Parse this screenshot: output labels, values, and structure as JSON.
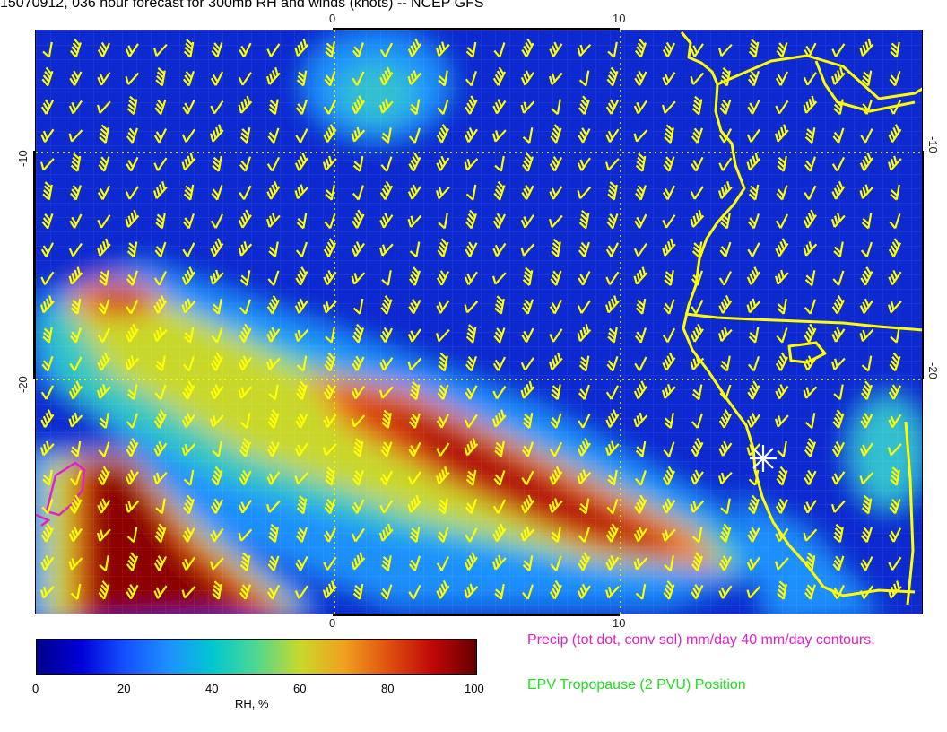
{
  "title": "15070912, 036 hour forecast for 300mb RH and winds (knots) -- NCEP GFS",
  "map": {
    "top_axis_labels": [
      "0",
      "10"
    ],
    "bottom_axis_labels": [
      "0",
      "10"
    ],
    "left_axis_labels": [
      "-10",
      "-20"
    ],
    "right_axis_labels": [
      "-10",
      "-20"
    ],
    "colors": {
      "background_rh_low": "#0a2ad0",
      "coastline": "#ffff00",
      "wind_barb": "#ffff00",
      "gridline": "#ffff00",
      "precip_contour": "#e020c8",
      "epv_marker": "#ffffff"
    },
    "markers": [
      "epv-tropopause-asterisk"
    ]
  },
  "colorbar": {
    "ticks": [
      "0",
      "20",
      "40",
      "60",
      "80",
      "100"
    ],
    "label": "RH, %",
    "range": [
      0,
      100
    ]
  },
  "legend": {
    "precip": "Precip (tot dot, conv sol) mm/day 40 mm/day contours,",
    "epv": "EPV Tropopause (2 PVU) Position"
  }
}
